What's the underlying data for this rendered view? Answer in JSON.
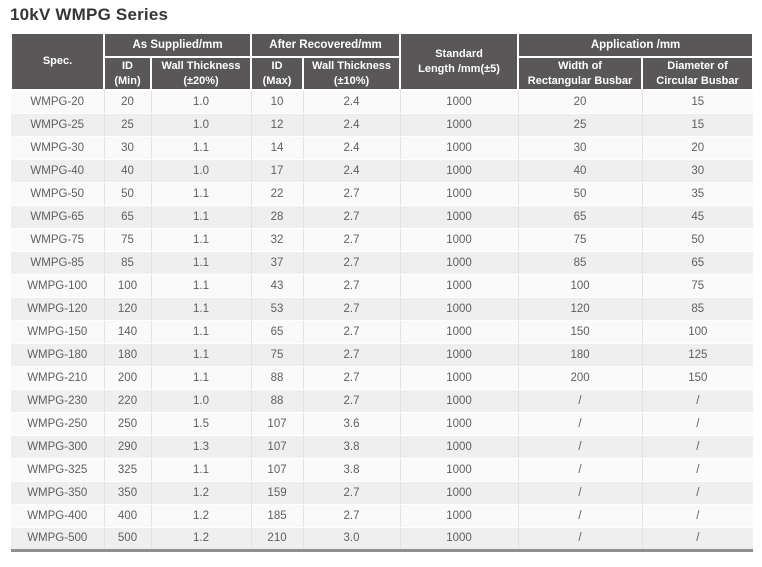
{
  "page": {
    "title": "10kV WMPG Series"
  },
  "colors": {
    "header_bg": "#595757",
    "header_text": "#ffffff",
    "row_odd_bg": "#fafafa",
    "row_even_bg": "#efefef",
    "cell_text": "#5f5f5f",
    "divider": "#e2e2e2",
    "table_bottom_border": "#8f8f8f"
  },
  "table": {
    "header": {
      "spec": "Spec.",
      "as_supplied": "As Supplied/mm",
      "after_recovered": "After Recovered/mm",
      "standard_length": "Standard\nLength /mm(±5)",
      "application": "Application /mm",
      "id_min": "ID\n(Min)",
      "wall_thickness_20": "Wall Thickness\n(±20%)",
      "id_max": "ID\n(Max)",
      "wall_thickness_10": "Wall Thickness\n(±10%)",
      "width_rectangular_busbar": "Width of\nRectangular Busbar",
      "diameter_circular_busbar": "Diameter of\nCircular Busbar"
    },
    "rows": [
      [
        "WMPG-20",
        "20",
        "1.0",
        "10",
        "2.4",
        "1000",
        "20",
        "15"
      ],
      [
        "WMPG-25",
        "25",
        "1.0",
        "12",
        "2.4",
        "1000",
        "25",
        "15"
      ],
      [
        "WMPG-30",
        "30",
        "1.1",
        "14",
        "2.4",
        "1000",
        "30",
        "20"
      ],
      [
        "WMPG-40",
        "40",
        "1.0",
        "17",
        "2.4",
        "1000",
        "40",
        "30"
      ],
      [
        "WMPG-50",
        "50",
        "1.1",
        "22",
        "2.7",
        "1000",
        "50",
        "35"
      ],
      [
        "WMPG-65",
        "65",
        "1.1",
        "28",
        "2.7",
        "1000",
        "65",
        "45"
      ],
      [
        "WMPG-75",
        "75",
        "1.1",
        "32",
        "2.7",
        "1000",
        "75",
        "50"
      ],
      [
        "WMPG-85",
        "85",
        "1.1",
        "37",
        "2.7",
        "1000",
        "85",
        "65"
      ],
      [
        "WMPG-100",
        "100",
        "1.1",
        "43",
        "2.7",
        "1000",
        "100",
        "75"
      ],
      [
        "WMPG-120",
        "120",
        "1.1",
        "53",
        "2.7",
        "1000",
        "120",
        "85"
      ],
      [
        "WMPG-150",
        "140",
        "1.1",
        "65",
        "2.7",
        "1000",
        "150",
        "100"
      ],
      [
        "WMPG-180",
        "180",
        "1.1",
        "75",
        "2.7",
        "1000",
        "180",
        "125"
      ],
      [
        "WMPG-210",
        "200",
        "1.1",
        "88",
        "2.7",
        "1000",
        "200",
        "150"
      ],
      [
        "WMPG-230",
        "220",
        "1.0",
        "88",
        "2.7",
        "1000",
        "/",
        "/"
      ],
      [
        "WMPG-250",
        "250",
        "1.5",
        "107",
        "3.6",
        "1000",
        "/",
        "/"
      ],
      [
        "WMPG-300",
        "290",
        "1.3",
        "107",
        "3.8",
        "1000",
        "/",
        "/"
      ],
      [
        "WMPG-325",
        "325",
        "1.1",
        "107",
        "3.8",
        "1000",
        "/",
        "/"
      ],
      [
        "WMPG-350",
        "350",
        "1.2",
        "159",
        "2.7",
        "1000",
        "/",
        "/"
      ],
      [
        "WMPG-400",
        "400",
        "1.2",
        "185",
        "2.7",
        "1000",
        "/",
        "/"
      ],
      [
        "WMPG-500",
        "500",
        "1.2",
        "210",
        "3.0",
        "1000",
        "/",
        "/"
      ]
    ]
  }
}
